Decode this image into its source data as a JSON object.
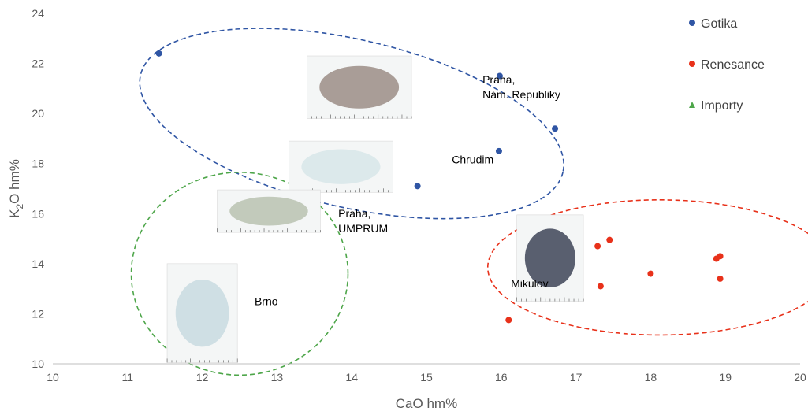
{
  "chart_data": {
    "type": "scatter",
    "xlabel": "CaO hm%",
    "ylabel_main": "K",
    "ylabel_sub": "2",
    "ylabel_tail": "O hm%",
    "xlim": [
      10,
      20
    ],
    "ylim": [
      10,
      24
    ],
    "x_ticks": [
      "10",
      "11",
      "12",
      "13",
      "14",
      "15",
      "16",
      "17",
      "18",
      "19",
      "20"
    ],
    "y_ticks": [
      "10",
      "12",
      "14",
      "16",
      "18",
      "20",
      "22",
      "24"
    ],
    "grid": false,
    "legend_position": "top-right",
    "series": [
      {
        "name": "Gotika",
        "color": "#2f55a4",
        "marker": "circle",
        "points": [
          {
            "x": 11.42,
            "y": 22.4
          },
          {
            "x": 15.98,
            "y": 21.5
          },
          {
            "x": 16.72,
            "y": 19.4
          },
          {
            "x": 15.97,
            "y": 18.5
          },
          {
            "x": 14.88,
            "y": 17.1
          }
        ]
      },
      {
        "name": "Renesance",
        "color": "#e8311a",
        "marker": "circle",
        "points": [
          {
            "x": 17.45,
            "y": 14.95
          },
          {
            "x": 17.29,
            "y": 14.7
          },
          {
            "x": 18.93,
            "y": 14.3
          },
          {
            "x": 18.88,
            "y": 14.2
          },
          {
            "x": 18.0,
            "y": 13.6
          },
          {
            "x": 18.93,
            "y": 13.4
          },
          {
            "x": 17.33,
            "y": 13.1
          },
          {
            "x": 16.1,
            "y": 11.75
          }
        ]
      },
      {
        "name": "Importy",
        "color": "#4ea64a",
        "marker": "triangle",
        "points": []
      }
    ],
    "group_ellipses": [
      {
        "series": "Gotika",
        "color": "#2f55a4",
        "cx": 14.0,
        "cy": 19.6,
        "rx_data": 2.9,
        "ry_data": 3.35,
        "rotation_deg": 13
      },
      {
        "series": "Renesance",
        "color": "#e8311a",
        "cx": 18.12,
        "cy": 13.85,
        "rx_data": 2.3,
        "ry_data": 2.7,
        "rotation_deg": 0
      },
      {
        "series": "Importy",
        "color": "#4ea64a",
        "cx": 12.5,
        "cy": 13.6,
        "rx_data": 1.45,
        "ry_data": 4.05,
        "rotation_deg": 0
      }
    ],
    "photo_labels": [
      {
        "name": "praha-nam-republiky",
        "lines": [
          "Praha,",
          "Nám. Republiky"
        ],
        "x": 15.75,
        "y": 21.2
      },
      {
        "name": "chrudim",
        "lines": [
          "Chrudim"
        ],
        "x": 15.34,
        "y": 18.0
      },
      {
        "name": "praha-umprum",
        "lines": [
          "Praha,",
          "UMPRUM"
        ],
        "x": 13.82,
        "y": 15.85
      },
      {
        "name": "mikulov",
        "lines": [
          "Mikulov"
        ],
        "x": 16.13,
        "y": 13.05
      },
      {
        "name": "brno",
        "lines": [
          "Brno"
        ],
        "x": 12.7,
        "y": 12.35
      }
    ],
    "photos": [
      {
        "name": "glass-fragment-photo-nam-republiky",
        "x0": 13.4,
        "x1": 14.8,
        "y0": 19.8,
        "y1": 22.3,
        "fill": "#9b8d86"
      },
      {
        "name": "glass-fragment-photo-chrudim",
        "x0": 13.16,
        "x1": 14.55,
        "y0": 16.85,
        "y1": 18.9,
        "fill": "#d7e6e9"
      },
      {
        "name": "glass-fragment-photo-umprum",
        "x0": 12.2,
        "x1": 13.58,
        "y0": 15.25,
        "y1": 16.95,
        "fill": "#b9c2b0"
      },
      {
        "name": "glass-fragment-photo-mikulov",
        "x0": 16.21,
        "x1": 17.1,
        "y0": 12.5,
        "y1": 15.95,
        "fill": "#3d4457"
      },
      {
        "name": "glass-fragment-photo-brno",
        "x0": 11.53,
        "x1": 12.47,
        "y0": 10.05,
        "y1": 14.0,
        "fill": "#c8dbe0"
      }
    ]
  }
}
